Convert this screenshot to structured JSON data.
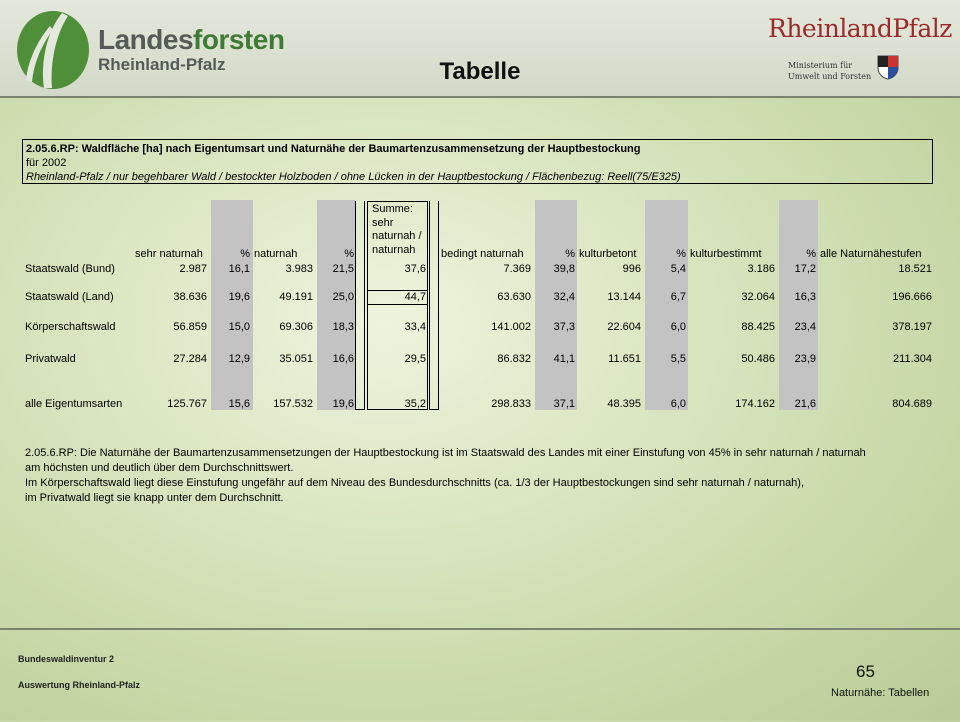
{
  "header": {
    "logo_line1_a": "Landes",
    "logo_line1_b": "forsten",
    "logo_line2": "Rheinland-Pfalz",
    "title": "Tabelle",
    "rlp": "RheinlandPfalz",
    "ministry_line1": "Ministerium für",
    "ministry_line2": "Umwelt und Forsten"
  },
  "caption": {
    "line1": "2.05.6.RP: Waldfläche [ha] nach Eigentumsart und Naturnähe der Baumartenzusammensetzung der Hauptbestockung",
    "line2": "für 2002",
    "line3": "Rheinland-Pfalz / nur begehbarer Wald / bestockter Holzboden / ohne Lücken in der Hauptbestockung / Flächenbezug: Reell(75/E325)"
  },
  "table": {
    "summe_header": [
      "Summe:",
      "sehr",
      "naturnah /",
      "naturnah"
    ],
    "headers": [
      "sehr naturnah",
      "%",
      "naturnah",
      "%",
      "bedingt naturnah",
      "%",
      "kulturbetont",
      "%",
      "kulturbestimmt",
      "%",
      "alle Naturnähestufen"
    ],
    "rows": [
      {
        "label": "Staatswald (Bund)",
        "v": [
          "2.987",
          "16,1",
          "3.983",
          "21,5",
          "37,6",
          "7.369",
          "39,8",
          "996",
          "5,4",
          "3.186",
          "17,2",
          "18.521"
        ]
      },
      {
        "label": "Staatswald (Land)",
        "v": [
          "38.636",
          "19,6",
          "49.191",
          "25,0",
          "44,7",
          "63.630",
          "32,4",
          "13.144",
          "6,7",
          "32.064",
          "16,3",
          "196.666"
        ]
      },
      {
        "label": "Körperschaftswald",
        "v": [
          "56.859",
          "15,0",
          "69.306",
          "18,3",
          "33,4",
          "141.002",
          "37,3",
          "22.604",
          "6,0",
          "88.425",
          "23,4",
          "378.197"
        ]
      },
      {
        "label": "Privatwald",
        "v": [
          "27.284",
          "12,9",
          "35.051",
          "16,6",
          "29,5",
          "86.832",
          "41,1",
          "11.651",
          "5,5",
          "50.486",
          "23,9",
          "211.304"
        ]
      },
      {
        "label": "alle Eigentumsarten",
        "v": [
          "125.767",
          "15,6",
          "157.532",
          "19,6",
          "35,2",
          "298.833",
          "37,1",
          "48.395",
          "6,0",
          "174.162",
          "21,6",
          "804.689"
        ]
      }
    ]
  },
  "note": [
    "2.05.6.RP: Die Naturnähe der Baumartenzusammensetzungen der Hauptbestockung ist im Staatswald des Landes mit einer Einstufung von 45% in sehr naturnah / naturnah",
    "am höchsten und deutlich über dem Durchschnittswert.",
    "Im Körperschaftswald liegt diese Einstufung ungefähr auf dem Niveau des Bundesdurchschnitts (ca. 1/3 der Hauptbestockungen sind sehr naturnah / naturnah),",
    "im Privatwald liegt sie knapp unter dem Durchschnitt."
  ],
  "footer": {
    "line1": "Bundeswaldinventur 2",
    "line2": "Auswertung Rheinland-Pfalz",
    "page": "65",
    "section": "Naturnähe: Tabellen"
  }
}
